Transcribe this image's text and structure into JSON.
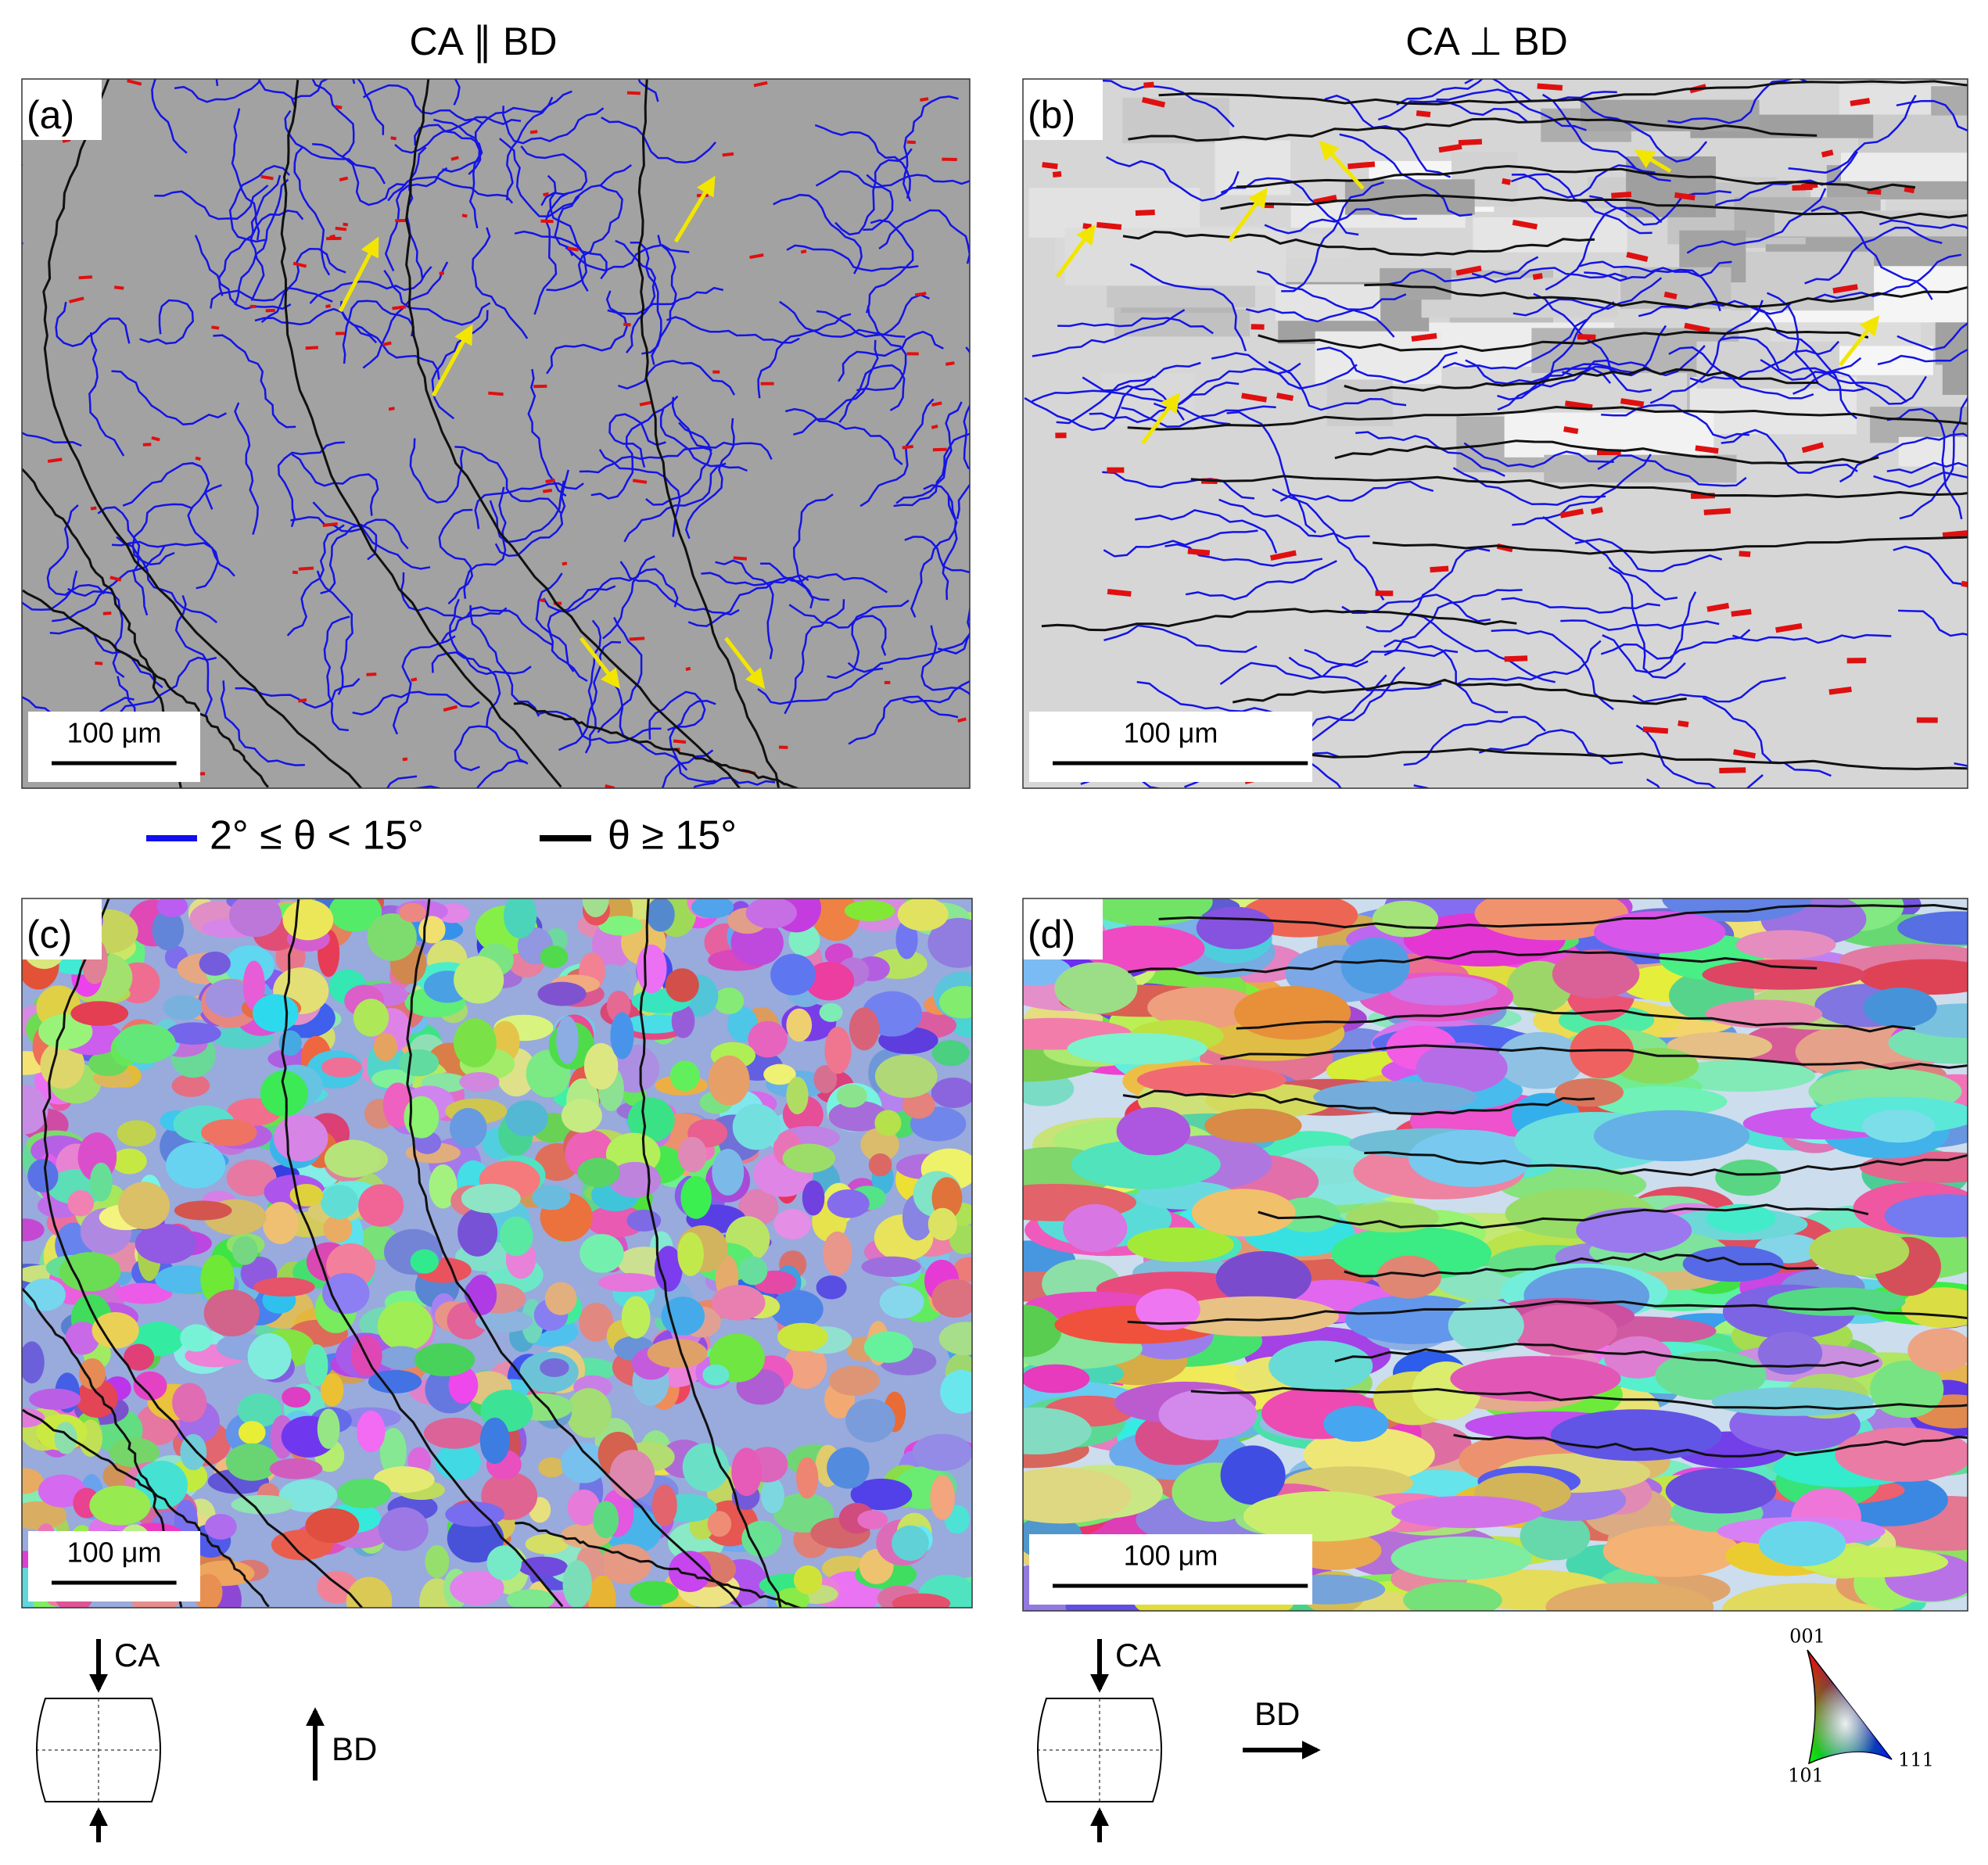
{
  "columns": [
    {
      "title": "CA ∥ BD"
    },
    {
      "title": "CA ⊥ BD"
    }
  ],
  "panels": [
    {
      "label": "(a)",
      "scale_bar": "100 μm"
    },
    {
      "label": "(b)",
      "scale_bar": "100 μm"
    },
    {
      "label": "(c)",
      "scale_bar": "100 μm"
    },
    {
      "label": "(d)",
      "scale_bar": "100 μm"
    }
  ],
  "legend": [
    {
      "label": "2° ≤ θ < 15°"
    },
    {
      "label": "θ ≥ 15°"
    }
  ],
  "schematics": [
    {
      "load_axis": "CA",
      "build_direction": "BD"
    },
    {
      "load_axis": "CA",
      "build_direction": "BD"
    }
  ],
  "ipf_key": {
    "corners": [
      "001",
      "101",
      "111"
    ]
  }
}
